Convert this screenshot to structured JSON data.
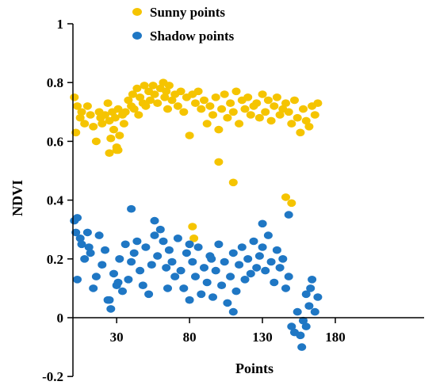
{
  "chart_data": {
    "type": "scatter",
    "title": "",
    "xlabel": "Points",
    "ylabel": "NDVI",
    "xlim": [
      0,
      190
    ],
    "ylim": [
      -0.2,
      1.0
    ],
    "x_ticks": [
      30,
      80,
      130,
      180
    ],
    "y_ticks": [
      -0.2,
      0,
      0.2,
      0.4,
      0.6,
      0.8,
      1
    ],
    "y_tick_labels": [
      "-0.2",
      "0",
      "0.2",
      "0.4",
      "0.6",
      "0.8",
      "1"
    ],
    "grid": false,
    "legend_position": "top-center",
    "series": [
      {
        "name": "Sunny points",
        "color": "#F5C400",
        "x": [
          1,
          2,
          3,
          5,
          6,
          8,
          10,
          12,
          14,
          16,
          18,
          19,
          20,
          22,
          24,
          25,
          26,
          27,
          28,
          29,
          30,
          31,
          32,
          34,
          35,
          36,
          38,
          40,
          41,
          42,
          44,
          45,
          46,
          48,
          49,
          50,
          52,
          53,
          55,
          56,
          58,
          60,
          62,
          63,
          64,
          65,
          66,
          68,
          70,
          72,
          74,
          76,
          78,
          80,
          82,
          84,
          86,
          88,
          90,
          92,
          94,
          96,
          98,
          100,
          102,
          104,
          106,
          108,
          110,
          112,
          114,
          116,
          118,
          120,
          122,
          124,
          126,
          128,
          130,
          132,
          134,
          136,
          138,
          140,
          142,
          144,
          146,
          148,
          150,
          152,
          154,
          156,
          158,
          160,
          162,
          164,
          166,
          168,
          25,
          30,
          31,
          100,
          110,
          82,
          83,
          146,
          150
        ],
        "y": [
          0.75,
          0.63,
          0.72,
          0.68,
          0.7,
          0.66,
          0.72,
          0.69,
          0.65,
          0.6,
          0.7,
          0.68,
          0.66,
          0.69,
          0.73,
          0.67,
          0.61,
          0.7,
          0.64,
          0.68,
          0.58,
          0.71,
          0.62,
          0.69,
          0.66,
          0.7,
          0.74,
          0.72,
          0.76,
          0.71,
          0.78,
          0.69,
          0.75,
          0.73,
          0.79,
          0.72,
          0.77,
          0.74,
          0.79,
          0.76,
          0.73,
          0.78,
          0.8,
          0.75,
          0.77,
          0.71,
          0.79,
          0.74,
          0.76,
          0.72,
          0.77,
          0.7,
          0.75,
          0.62,
          0.76,
          0.73,
          0.77,
          0.71,
          0.74,
          0.66,
          0.72,
          0.69,
          0.75,
          0.64,
          0.71,
          0.76,
          0.68,
          0.73,
          0.7,
          0.77,
          0.66,
          0.74,
          0.71,
          0.75,
          0.69,
          0.72,
          0.73,
          0.68,
          0.76,
          0.7,
          0.74,
          0.67,
          0.72,
          0.75,
          0.69,
          0.71,
          0.73,
          0.7,
          0.66,
          0.74,
          0.68,
          0.63,
          0.71,
          0.67,
          0.65,
          0.72,
          0.69,
          0.73,
          0.56,
          0.57,
          0.57,
          0.53,
          0.46,
          0.31,
          0.27,
          0.41,
          0.39
        ]
      },
      {
        "name": "Shadow points",
        "color": "#1F77C4",
        "x": [
          1,
          2,
          3,
          5,
          6,
          8,
          10,
          12,
          14,
          16,
          18,
          20,
          22,
          24,
          26,
          28,
          30,
          32,
          34,
          36,
          38,
          40,
          42,
          44,
          46,
          48,
          50,
          52,
          54,
          56,
          58,
          60,
          62,
          64,
          66,
          68,
          70,
          72,
          74,
          76,
          78,
          80,
          82,
          84,
          86,
          88,
          90,
          92,
          94,
          96,
          98,
          100,
          102,
          104,
          106,
          108,
          110,
          112,
          114,
          116,
          118,
          120,
          122,
          124,
          126,
          128,
          130,
          132,
          134,
          136,
          138,
          140,
          142,
          144,
          146,
          148,
          150,
          152,
          154,
          156,
          158,
          160,
          162,
          164,
          166,
          168,
          3,
          11,
          25,
          31,
          40,
          56,
          65,
          80,
          95,
          110,
          130,
          148,
          157,
          160,
          163
        ],
        "y": [
          0.33,
          0.29,
          0.34,
          0.27,
          0.25,
          0.2,
          0.29,
          0.22,
          0.1,
          0.14,
          0.28,
          0.18,
          0.23,
          0.06,
          0.03,
          0.15,
          0.11,
          0.2,
          0.09,
          0.25,
          0.13,
          0.19,
          0.22,
          0.26,
          0.16,
          0.11,
          0.24,
          0.08,
          0.18,
          0.28,
          0.21,
          0.3,
          0.26,
          0.17,
          0.23,
          0.19,
          0.14,
          0.27,
          0.16,
          0.1,
          0.22,
          0.06,
          0.19,
          0.14,
          0.24,
          0.08,
          0.17,
          0.12,
          0.21,
          0.07,
          0.16,
          0.25,
          0.11,
          0.19,
          0.05,
          0.14,
          0.22,
          0.09,
          0.18,
          0.24,
          0.13,
          0.2,
          0.15,
          0.26,
          0.17,
          0.21,
          0.24,
          0.16,
          0.28,
          0.19,
          0.12,
          0.23,
          0.17,
          0.2,
          0.1,
          0.14,
          -0.03,
          -0.05,
          0.02,
          -0.06,
          -0.01,
          -0.03,
          0.04,
          0.13,
          0.02,
          0.07,
          0.13,
          0.24,
          0.06,
          0.12,
          0.37,
          0.33,
          0.1,
          0.25,
          0.2,
          0.02,
          0.32,
          0.35,
          -0.1,
          0.08,
          0.1
        ]
      }
    ]
  }
}
